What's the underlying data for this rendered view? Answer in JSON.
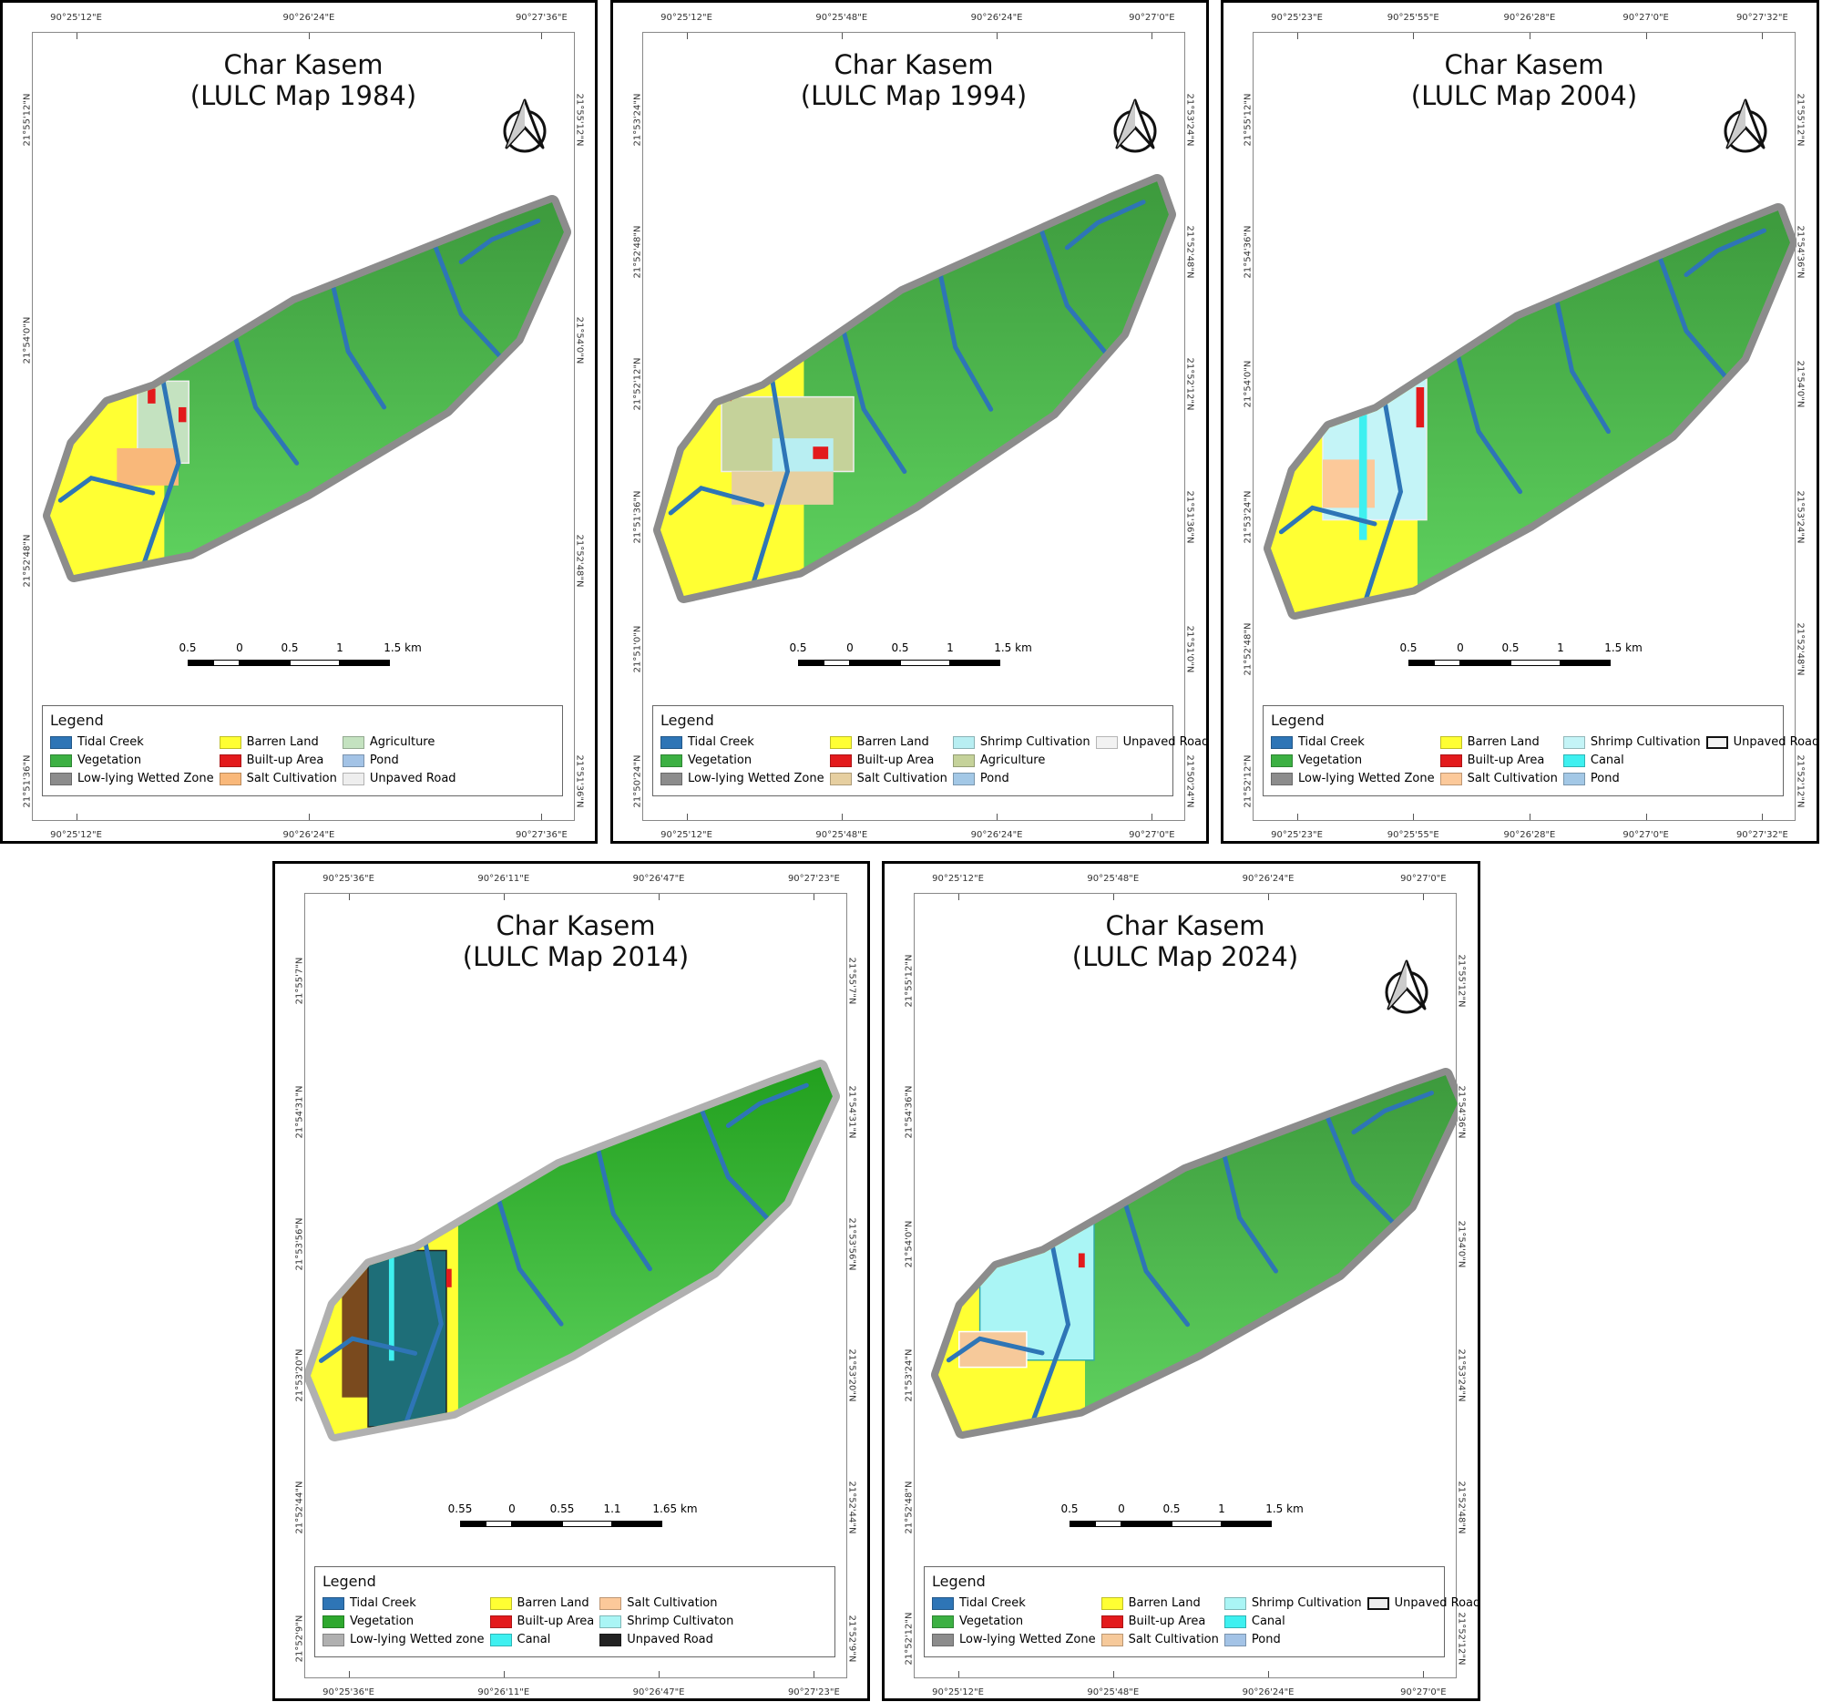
{
  "panels": [
    {
      "title_line1": "Char Kasem",
      "title_line2": "(LULC Map 1984)",
      "year": 1984,
      "top_lon_labels": [
        "90°25'12\"E",
        "90°26'24\"E",
        "90°27'36\"E"
      ],
      "bottom_lon_labels": [
        "90°25'12\"E",
        "90°26'24\"E",
        "90°27'36\"E"
      ],
      "left_lat_labels": [
        "21°55'12\"N",
        "21°54'0\"N",
        "21°52'48\"N",
        "21°51'36\"N"
      ],
      "right_lat_labels": [
        "21°55'12\"N",
        "21°54'0\"N",
        "21°52'48\"N",
        "21°51'36\"N"
      ],
      "scale_labels": [
        "0.5",
        "0",
        "0.5",
        "1",
        "1.5 km"
      ],
      "north_arrow": true,
      "legend_title": "Legend",
      "legend_columns": [
        [
          {
            "label": "Tidal Creek",
            "color": "#2e75b6"
          },
          {
            "label": "Vegetation",
            "color": "#3cb043"
          },
          {
            "label": "Low-lying Wetted Zone",
            "color": "#8c8c8c"
          }
        ],
        [
          {
            "label": "Barren Land",
            "color": "#ffff33"
          },
          {
            "label": "Built-up Area",
            "color": "#e31a1c"
          },
          {
            "label": "Salt Cultivation",
            "color": "#f9b87a"
          }
        ],
        [
          {
            "label": "Agriculture",
            "color": "#c4e2c0"
          },
          {
            "label": "Pond",
            "color": "#a3c3e6"
          },
          {
            "label": "Unpaved Road",
            "color": "#eeeeee"
          }
        ]
      ]
    },
    {
      "title_line1": "Char Kasem",
      "title_line2": "(LULC Map 1994)",
      "year": 1994,
      "top_lon_labels": [
        "90°25'12\"E",
        "90°25'48\"E",
        "90°26'24\"E",
        "90°27'0\"E"
      ],
      "bottom_lon_labels": [
        "90°25'12\"E",
        "90°25'48\"E",
        "90°26'24\"E",
        "90°27'0\"E"
      ],
      "left_lat_labels": [
        "21°53'24\"N",
        "21°52'48\"N",
        "21°52'12\"N",
        "21°51'36\"N",
        "21°51'0\"N",
        "21°50'24\"N"
      ],
      "right_lat_labels": [
        "21°53'24\"N",
        "21°52'48\"N",
        "21°52'12\"N",
        "21°51'36\"N",
        "21°51'0\"N",
        "21°50'24\"N"
      ],
      "scale_labels": [
        "0.5",
        "0",
        "0.5",
        "1",
        "1.5 km"
      ],
      "north_arrow": true,
      "legend_title": "Legend",
      "legend_columns": [
        [
          {
            "label": "Tidal Creek",
            "color": "#2e75b6"
          },
          {
            "label": "Vegetation",
            "color": "#3cb043"
          },
          {
            "label": "Low-lying Wetted Zone",
            "color": "#8c8c8c"
          }
        ],
        [
          {
            "label": "Barren Land",
            "color": "#ffff33"
          },
          {
            "label": "Built-up Area",
            "color": "#e31a1c"
          },
          {
            "label": "Salt Cultivation",
            "color": "#e6cfa0"
          }
        ],
        [
          {
            "label": "Shrimp Cultivation",
            "color": "#b8eef2"
          },
          {
            "label": "Agriculture",
            "color": "#c5d29a"
          },
          {
            "label": "Pond",
            "color": "#a3c8e6"
          }
        ],
        [
          {
            "label": "Unpaved Road",
            "color": "#f2f2f2"
          }
        ]
      ]
    },
    {
      "title_line1": "Char Kasem",
      "title_line2": "(LULC Map 2004)",
      "year": 2004,
      "top_lon_labels": [
        "90°25'23\"E",
        "90°25'55\"E",
        "90°26'28\"E",
        "90°27'0\"E",
        "90°27'32\"E"
      ],
      "bottom_lon_labels": [
        "90°25'23\"E",
        "90°25'55\"E",
        "90°26'28\"E",
        "90°27'0\"E",
        "90°27'32\"E"
      ],
      "left_lat_labels": [
        "21°55'12\"N",
        "21°54'36\"N",
        "21°54'0\"N",
        "21°53'24\"N",
        "21°52'48\"N",
        "21°52'12\"N"
      ],
      "right_lat_labels": [
        "21°55'12\"N",
        "21°54'36\"N",
        "21°54'0\"N",
        "21°53'24\"N",
        "21°52'48\"N",
        "21°52'12\"N"
      ],
      "scale_labels": [
        "0.5",
        "0",
        "0.5",
        "1",
        "1.5 km"
      ],
      "north_arrow": true,
      "legend_title": "Legend",
      "legend_columns": [
        [
          {
            "label": "Tidal Creek",
            "color": "#2e75b6"
          },
          {
            "label": "Vegetation",
            "color": "#3cb043"
          },
          {
            "label": "Low-lying Wetted Zone",
            "color": "#8c8c8c"
          }
        ],
        [
          {
            "label": "Barren Land",
            "color": "#ffff33"
          },
          {
            "label": "Built-up Area",
            "color": "#e31a1c"
          },
          {
            "label": "Salt Cultivation",
            "color": "#fcc99a"
          }
        ],
        [
          {
            "label": "Shrimp Cultivation",
            "color": "#c4f4f7"
          },
          {
            "label": "Canal",
            "color": "#3ef0f0"
          },
          {
            "label": "Pond",
            "color": "#a3c8e6"
          }
        ],
        [
          {
            "label": "Unpaved Road",
            "color": "#f2f2f2"
          }
        ]
      ]
    },
    {
      "title_line1": "Char Kasem",
      "title_line2": "(LULC Map 2014)",
      "year": 2014,
      "top_lon_labels": [
        "90°25'36\"E",
        "90°26'11\"E",
        "90°26'47\"E",
        "90°27'23\"E"
      ],
      "bottom_lon_labels": [
        "90°25'36\"E",
        "90°26'11\"E",
        "90°26'47\"E",
        "90°27'23\"E"
      ],
      "left_lat_labels": [
        "21°55'7\"N",
        "21°54'31\"N",
        "21°53'56\"N",
        "21°53'20\"N",
        "21°52'44\"N",
        "21°52'9\"N"
      ],
      "right_lat_labels": [
        "21°55'7\"N",
        "21°54'31\"N",
        "21°53'56\"N",
        "21°53'20\"N",
        "21°52'44\"N",
        "21°52'9\"N"
      ],
      "scale_labels": [
        "0.55",
        "0",
        "0.55",
        "1.1",
        "1.65 km"
      ],
      "north_arrow": false,
      "legend_title": "Legend",
      "legend_columns": [
        [
          {
            "label": "Tidal Creek",
            "color": "#2e75b6"
          },
          {
            "label": "Vegetation",
            "color": "#2ea82e"
          },
          {
            "label": "Low-lying Wetted zone",
            "color": "#b0b0b0"
          }
        ],
        [
          {
            "label": "Barren Land",
            "color": "#ffff33"
          },
          {
            "label": "Built-up Area",
            "color": "#e31a1c"
          },
          {
            "label": "Canal",
            "color": "#3ef0f0"
          }
        ],
        [
          {
            "label": "Salt Cultivation",
            "color": "#fcc99a"
          },
          {
            "label": "Shrimp Cultivaton",
            "color": "#aaf5f5"
          },
          {
            "label": "Unpaved Road",
            "color": "#222222"
          }
        ]
      ]
    },
    {
      "title_line1": "Char Kasem",
      "title_line2": "(LULC Map 2024)",
      "year": 2024,
      "top_lon_labels": [
        "90°25'12\"E",
        "90°25'48\"E",
        "90°26'24\"E",
        "90°27'0\"E"
      ],
      "bottom_lon_labels": [
        "90°25'12\"E",
        "90°25'48\"E",
        "90°26'24\"E",
        "90°27'0\"E"
      ],
      "left_lat_labels": [
        "21°55'12\"N",
        "21°54'36\"N",
        "21°54'0\"N",
        "21°53'24\"N",
        "21°52'48\"N",
        "21°52'12\"N"
      ],
      "right_lat_labels": [
        "21°55'12\"N",
        "21°54'36\"N",
        "21°54'0\"N",
        "21°53'24\"N",
        "21°52'48\"N",
        "21°52'12\"N"
      ],
      "scale_labels": [
        "0.5",
        "0",
        "0.5",
        "1",
        "1.5 km"
      ],
      "north_arrow": true,
      "legend_title": "Legend",
      "legend_columns": [
        [
          {
            "label": "Tidal Creek",
            "color": "#2e75b6"
          },
          {
            "label": "Vegetation",
            "color": "#3cb043"
          },
          {
            "label": "Low-lying Wetted Zone",
            "color": "#8c8c8c"
          }
        ],
        [
          {
            "label": "Barren Land",
            "color": "#ffff33"
          },
          {
            "label": "Built-up Area",
            "color": "#e31a1c"
          },
          {
            "label": "Salt Cultivation",
            "color": "#f6c99a"
          }
        ],
        [
          {
            "label": "Shrimp Cultivation",
            "color": "#aaf5f5"
          },
          {
            "label": "Canal",
            "color": "#3ef0f0"
          },
          {
            "label": "Pond",
            "color": "#a3c3e6"
          }
        ],
        [
          {
            "label": "Unpaved Road",
            "color": "#eeeeee"
          }
        ]
      ]
    }
  ]
}
